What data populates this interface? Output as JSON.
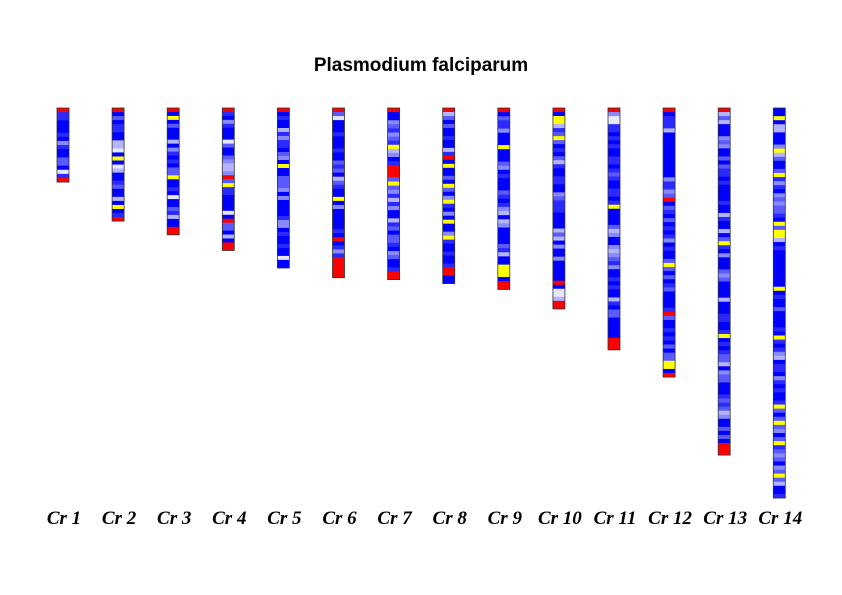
{
  "chart_data": {
    "type": "heatmap",
    "title": "Plasmodium falciparum",
    "xlabel": "",
    "ylabel": "",
    "grid": false,
    "legend": "none",
    "colors": {
      "low": "#0000ff",
      "mid": "#c8c8ff",
      "yellow": "#ffff00",
      "red": "#ff0000",
      "outline": "#333333"
    },
    "categories": [
      "Cr 1",
      "Cr 2",
      "Cr 3",
      "Cr 4",
      "Cr 5",
      "Cr 6",
      "Cr 7",
      "Cr 8",
      "Cr 9",
      "Cr 10",
      "Cr 11",
      "Cr 12",
      "Cr 13",
      "Cr 14"
    ],
    "relative_lengths": [
      0.19,
      0.29,
      0.325,
      0.365,
      0.41,
      0.435,
      0.44,
      0.45,
      0.465,
      0.515,
      0.62,
      0.69,
      0.89,
      1.0
    ],
    "chromosomes": [
      {
        "label": "Cr 1",
        "segments": 18,
        "yellow": [],
        "red": [
          [
            0,
            1
          ],
          [
            17,
            18
          ]
        ],
        "white": [
          [
            15,
            16
          ]
        ]
      },
      {
        "label": "Cr 2",
        "segments": 28,
        "yellow": [
          [
            12,
            13
          ],
          [
            24,
            25
          ]
        ],
        "red": [
          [
            0,
            1
          ],
          [
            27,
            28
          ]
        ],
        "white": [
          [
            10,
            11
          ],
          [
            14,
            15
          ]
        ]
      },
      {
        "label": "Cr 3",
        "segments": 32,
        "yellow": [
          [
            2,
            3
          ],
          [
            17,
            18
          ]
        ],
        "red": [
          [
            0,
            1
          ],
          [
            30,
            32
          ]
        ],
        "white": [
          [
            22,
            23
          ]
        ]
      },
      {
        "label": "Cr 4",
        "segments": 36,
        "yellow": [
          [
            19,
            20
          ]
        ],
        "red": [
          [
            0,
            1
          ],
          [
            17,
            18
          ],
          [
            28,
            29
          ],
          [
            34,
            36
          ]
        ],
        "white": [
          [
            8,
            9
          ],
          [
            26,
            27
          ]
        ]
      },
      {
        "label": "Cr 5",
        "segments": 40,
        "yellow": [
          [
            14,
            15
          ]
        ],
        "red": [
          [
            0,
            1
          ]
        ],
        "white": [
          [
            37,
            38
          ]
        ]
      },
      {
        "label": "Cr 6",
        "segments": 42,
        "yellow": [
          [
            22,
            23
          ]
        ],
        "red": [
          [
            0,
            1
          ],
          [
            32,
            33
          ],
          [
            37,
            42
          ]
        ],
        "white": [
          [
            2,
            3
          ]
        ]
      },
      {
        "label": "Cr 7",
        "segments": 42,
        "yellow": [
          [
            9,
            10
          ],
          [
            18,
            19
          ]
        ],
        "red": [
          [
            0,
            1
          ],
          [
            14,
            17
          ],
          [
            40,
            42
          ]
        ],
        "white": []
      },
      {
        "label": "Cr 8",
        "segments": 44,
        "yellow": [
          [
            14,
            15
          ],
          [
            19,
            20
          ],
          [
            23,
            24
          ],
          [
            28,
            29
          ],
          [
            32,
            33
          ]
        ],
        "red": [
          [
            0,
            1
          ],
          [
            12,
            13
          ],
          [
            40,
            42
          ]
        ],
        "white": []
      },
      {
        "label": "Cr 9",
        "segments": 44,
        "yellow": [
          [
            9,
            10
          ],
          [
            38,
            41
          ]
        ],
        "red": [
          [
            0,
            1
          ],
          [
            42,
            44
          ]
        ],
        "white": []
      },
      {
        "label": "Cr 10",
        "segments": 50,
        "yellow": [
          [
            2,
            4
          ],
          [
            7,
            8
          ]
        ],
        "red": [
          [
            0,
            1
          ],
          [
            43,
            44
          ],
          [
            48,
            50
          ]
        ],
        "white": [
          [
            45,
            47
          ]
        ]
      },
      {
        "label": "Cr 11",
        "segments": 60,
        "yellow": [
          [
            24,
            25
          ]
        ],
        "red": [
          [
            0,
            1
          ],
          [
            57,
            60
          ]
        ],
        "white": [
          [
            2,
            4
          ]
        ]
      },
      {
        "label": "Cr 12",
        "segments": 66,
        "yellow": [
          [
            38,
            39
          ],
          [
            62,
            64
          ]
        ],
        "red": [
          [
            0,
            1
          ],
          [
            22,
            23
          ],
          [
            50,
            51
          ],
          [
            65,
            66
          ]
        ],
        "white": []
      },
      {
        "label": "Cr 13",
        "segments": 86,
        "yellow": [
          [
            33,
            34
          ],
          [
            56,
            57
          ]
        ],
        "red": [
          [
            0,
            1
          ],
          [
            83,
            86
          ]
        ],
        "white": []
      },
      {
        "label": "Cr 14",
        "segments": 96,
        "yellow": [
          [
            2,
            3
          ],
          [
            10,
            11
          ],
          [
            16,
            17
          ],
          [
            28,
            29
          ],
          [
            30,
            32
          ],
          [
            44,
            45
          ],
          [
            56,
            57
          ],
          [
            73,
            74
          ],
          [
            77,
            78
          ],
          [
            82,
            83
          ],
          [
            90,
            91
          ]
        ],
        "red": [],
        "white": []
      }
    ]
  }
}
